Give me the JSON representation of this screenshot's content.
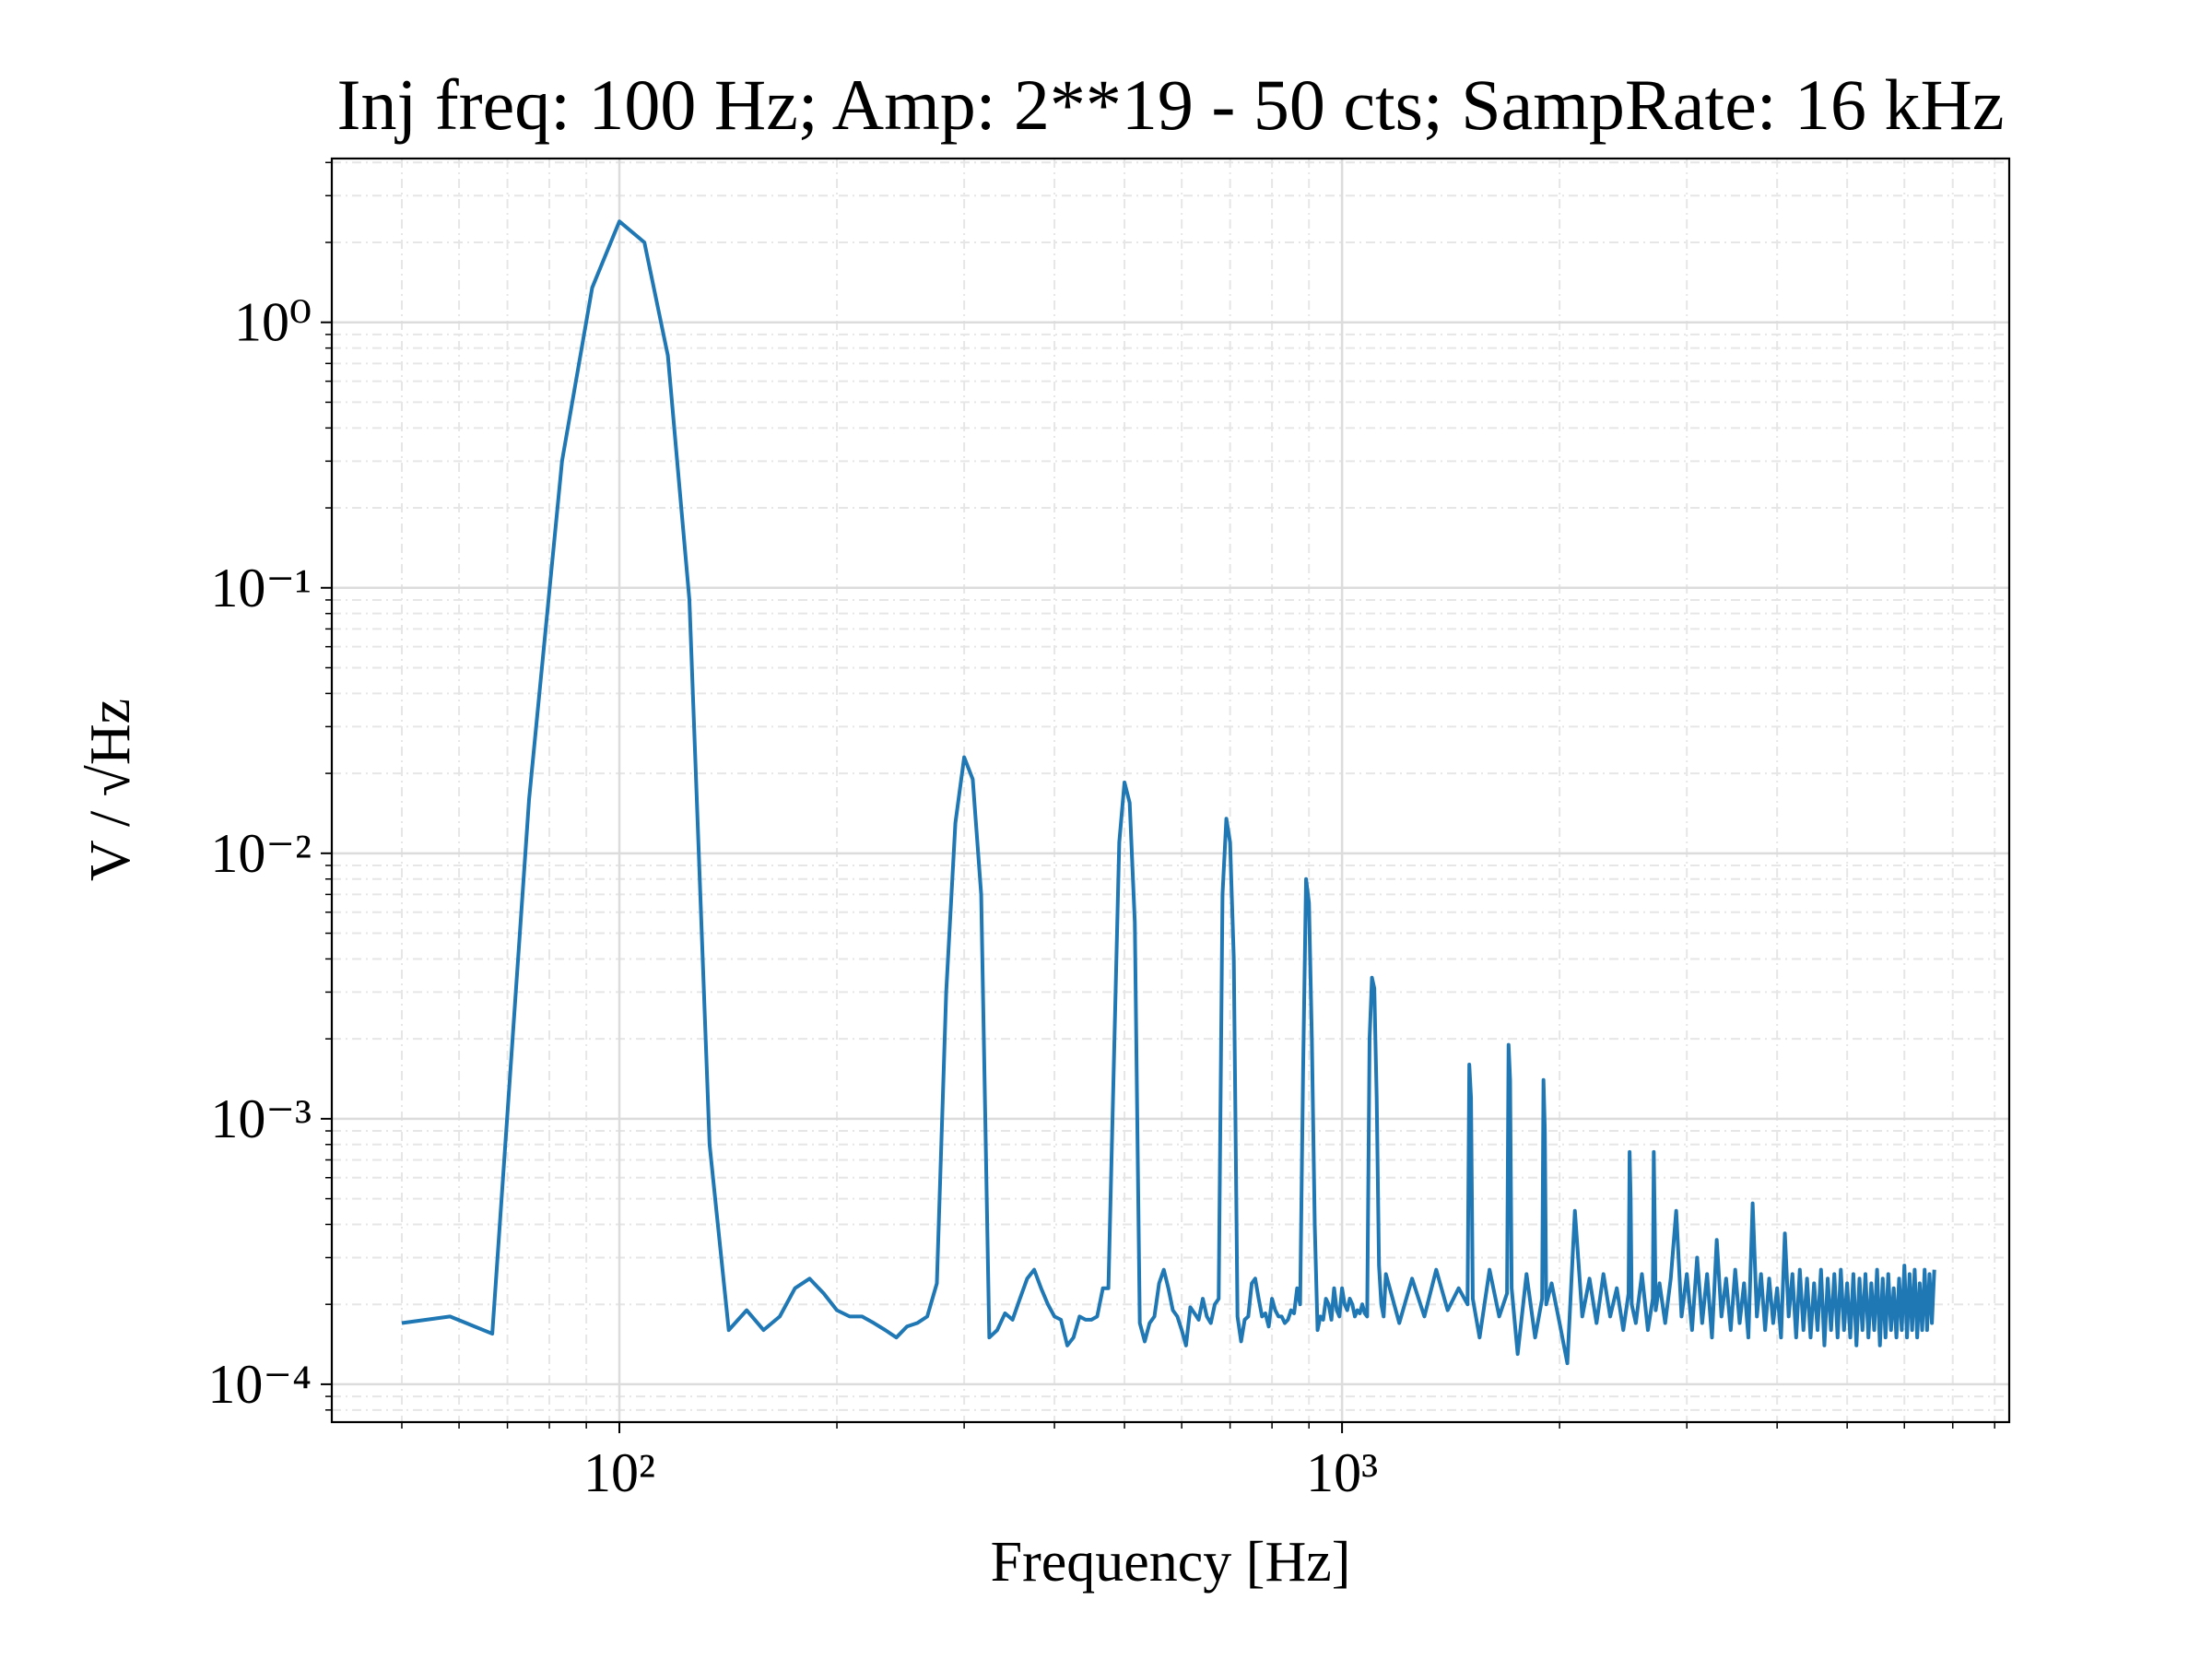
{
  "chart_data": {
    "type": "line",
    "title": "Inj freq: 100 Hz; Amp: 2**19 - 50 cts; SampRate: 16 kHz",
    "x_label": "Frequency [Hz]",
    "y_label": "V / √Hz",
    "log_x": true,
    "log_y": true,
    "grid": true,
    "xlim": [
      40,
      8380
    ],
    "ylim": [
      7.2e-05,
      4.14
    ],
    "xticks": [
      {
        "value": 100,
        "label": "10²"
      },
      {
        "value": 1000,
        "label": "10³"
      }
    ],
    "yticks": [
      {
        "value": 0.0001,
        "label": "10⁻⁴"
      },
      {
        "value": 0.001,
        "label": "10⁻³"
      },
      {
        "value": 0.01,
        "label": "10⁻²"
      },
      {
        "value": 0.1,
        "label": "10⁻¹"
      },
      {
        "value": 1,
        "label": "10⁰"
      }
    ],
    "xminorticks": [
      50,
      60,
      70,
      80,
      90,
      200,
      300,
      400,
      500,
      600,
      700,
      800,
      900,
      2000,
      3000,
      4000,
      5000,
      6000,
      7000,
      8000
    ],
    "yminorticks": [
      8e-05,
      9e-05,
      0.0002,
      0.0003,
      0.0004,
      0.0005,
      0.0006,
      0.0007,
      0.0008,
      0.0009,
      0.002,
      0.003,
      0.004,
      0.005,
      0.006,
      0.007,
      0.008,
      0.009,
      0.02,
      0.03,
      0.04,
      0.05,
      0.06,
      0.07,
      0.08,
      0.09,
      0.2,
      0.3,
      0.4,
      0.5,
      0.6,
      0.7,
      0.8,
      0.9,
      2,
      3,
      4
    ],
    "x": [
      50,
      58.3,
      66.7,
      75,
      83.3,
      91.7,
      100,
      108.3,
      116.7,
      125,
      133.3,
      141.7,
      150,
      158.3,
      166.7,
      175,
      183.3,
      191.7,
      200,
      208.3,
      216.7,
      225,
      233.3,
      241.7,
      250,
      258.3,
      266.7,
      275,
      283.3,
      291.7,
      300,
      308.3,
      316.7,
      325,
      333.3,
      341.7,
      350,
      358.3,
      366.7,
      375,
      383.3,
      391.7,
      400,
      408.3,
      416.7,
      425,
      433.3,
      441.7,
      450,
      458.3,
      466.7,
      475,
      483.3,
      491.7,
      500,
      508.3,
      516.7,
      525,
      533.3,
      541.7,
      550,
      558.3,
      566.7,
      575,
      583.3,
      591.7,
      600,
      608.3,
      616.7,
      625,
      633.3,
      641.7,
      650,
      658.3,
      666.7,
      675,
      683.3,
      691.7,
      700,
      708.3,
      716.7,
      725,
      733.3,
      741.7,
      750,
      758.3,
      766.7,
      775,
      783.3,
      791.7,
      800,
      808.3,
      816.7,
      825,
      833.3,
      841.7,
      850,
      858.3,
      866.7,
      875,
      883.3,
      891.7,
      900,
      908.3,
      916.7,
      925,
      933.3,
      941.7,
      950,
      958.3,
      966.7,
      975,
      983.3,
      991.7,
      1000,
      1008.3,
      1016.7,
      1025,
      1033.3,
      1041.7,
      1050,
      1058.3,
      1066.7,
      1075,
      1083.3,
      1091.7,
      1100,
      1108.3,
      1116.7,
      1125,
      1133.3,
      1141.7,
      1150,
      1200,
      1250,
      1300,
      1350,
      1400,
      1450,
      1491.7,
      1500,
      1508.3,
      1516.7,
      1550,
      1600,
      1650,
      1691.7,
      1700,
      1708.3,
      1716.7,
      1750,
      1800,
      1850,
      1891.7,
      1900,
      1908.3,
      1916.7,
      1950,
      2000,
      2050,
      2100,
      2150,
      2200,
      2250,
      2300,
      2350,
      2400,
      2450,
      2491.7,
      2500,
      2508.3,
      2516.7,
      2550,
      2600,
      2650,
      2691.7,
      2700,
      2708.3,
      2716.7,
      2750,
      2800,
      2850,
      2900,
      2950,
      3000,
      3050,
      3100,
      3150,
      3200,
      3250,
      3300,
      3350,
      3400,
      3450,
      3500,
      3550,
      3600,
      3650,
      3700,
      3750,
      3800,
      3850,
      3900,
      3950,
      4000,
      4050,
      4100,
      4150,
      4200,
      4250,
      4300,
      4350,
      4400,
      4450,
      4500,
      4550,
      4600,
      4650,
      4700,
      4750,
      4800,
      4850,
      4900,
      4950,
      5000,
      5050,
      5100,
      5150,
      5200,
      5250,
      5300,
      5350,
      5400,
      5450,
      5500,
      5550,
      5600,
      5650,
      5700,
      5750,
      5800,
      5850,
      5900,
      5950,
      6000,
      6050,
      6100,
      6150,
      6200,
      6250,
      6300,
      6350,
      6400,
      6450,
      6500,
      6550,
      6600
    ],
    "series": [
      {
        "color": "#1f77b4",
        "values": [
          0.00017,
          0.00018,
          0.000155,
          0.016,
          0.3,
          1.35,
          2.4,
          2.0,
          0.75,
          0.09,
          0.0008,
          0.00016,
          0.00019,
          0.00016,
          0.00018,
          0.00023,
          0.00025,
          0.00022,
          0.00019,
          0.00018,
          0.00018,
          0.00017,
          0.00016,
          0.00015,
          0.000165,
          0.00017,
          0.00018,
          0.00024,
          0.003,
          0.013,
          0.023,
          0.019,
          0.007,
          0.00015,
          0.00016,
          0.000185,
          0.000175,
          0.00021,
          0.00025,
          0.00027,
          0.00023,
          0.0002,
          0.00018,
          0.000175,
          0.00014,
          0.00015,
          0.00018,
          0.000175,
          0.000175,
          0.00018,
          0.00023,
          0.00023,
          0.0016,
          0.011,
          0.0185,
          0.0155,
          0.0055,
          0.00017,
          0.000145,
          0.00017,
          0.00018,
          0.00024,
          0.00027,
          0.00023,
          0.00019,
          0.00018,
          0.00016,
          0.00014,
          0.000195,
          0.000185,
          0.000175,
          0.00021,
          0.00018,
          0.00017,
          0.0002,
          0.00021,
          0.007,
          0.0135,
          0.011,
          0.004,
          0.00018,
          0.000145,
          0.000175,
          0.00018,
          0.00024,
          0.00025,
          0.00021,
          0.00018,
          0.000185,
          0.000165,
          0.00021,
          0.00019,
          0.00018,
          0.00018,
          0.00017,
          0.000175,
          0.00019,
          0.000185,
          0.00023,
          0.0002,
          0.0015,
          0.008,
          0.0065,
          0.002,
          0.0004,
          0.00016,
          0.00018,
          0.000175,
          0.00021,
          0.0002,
          0.000175,
          0.00023,
          0.00019,
          0.00018,
          0.00023,
          0.0002,
          0.00019,
          0.00021,
          0.0002,
          0.00018,
          0.00019,
          0.000185,
          0.0002,
          0.000185,
          0.00018,
          0.002,
          0.0034,
          0.0031,
          0.0012,
          0.00028,
          0.0002,
          0.00018,
          0.00026,
          0.00017,
          0.00025,
          0.00018,
          0.00027,
          0.00019,
          0.00023,
          0.0002,
          0.0016,
          0.0012,
          0.00021,
          0.00015,
          0.00027,
          0.00018,
          0.00022,
          0.0019,
          0.0014,
          0.00023,
          0.00013,
          0.00026,
          0.00015,
          0.00021,
          0.0014,
          0.0009,
          0.0002,
          0.00024,
          0.00017,
          0.00012,
          0.00045,
          0.00018,
          0.00025,
          0.00017,
          0.00026,
          0.00018,
          0.00023,
          0.00016,
          0.00022,
          0.00075,
          0.0005,
          0.0002,
          0.00017,
          0.00026,
          0.00016,
          0.00021,
          0.00075,
          0.0004,
          0.00019,
          0.00024,
          0.00017,
          0.00025,
          0.00045,
          0.00018,
          0.00026,
          0.00016,
          0.0003,
          0.00017,
          0.00026,
          0.00015,
          0.00035,
          0.00018,
          0.00025,
          0.00016,
          0.00027,
          0.00017,
          0.00024,
          0.00015,
          0.00048,
          0.00018,
          0.00026,
          0.00016,
          0.00025,
          0.00017,
          0.00023,
          0.00015,
          0.00037,
          0.00018,
          0.00026,
          0.00015,
          0.00027,
          0.00016,
          0.00025,
          0.00015,
          0.00024,
          0.00016,
          0.00027,
          0.00014,
          0.00025,
          0.00016,
          0.00026,
          0.00015,
          0.00027,
          0.00016,
          0.00024,
          0.00015,
          0.00026,
          0.00014,
          0.00025,
          0.00016,
          0.00026,
          0.00015,
          0.00024,
          0.00016,
          0.00027,
          0.00014,
          0.00025,
          0.00015,
          0.00026,
          0.00016,
          0.00023,
          0.00015,
          0.00025,
          0.00016,
          0.00028,
          0.00015,
          0.00026,
          0.00016,
          0.00027,
          0.00015,
          0.00024,
          0.00016,
          0.00027,
          0.00016,
          0.00026,
          0.00017,
          0.00027
        ]
      }
    ]
  }
}
